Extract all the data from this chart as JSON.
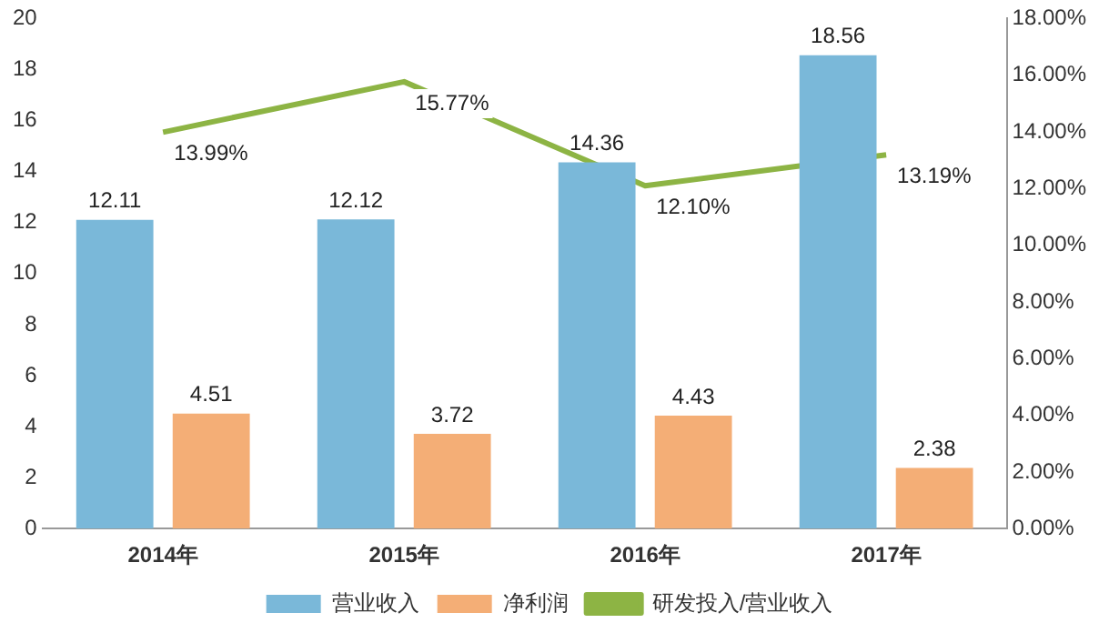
{
  "chart_data": {
    "type": "bar",
    "categories": [
      "2014年",
      "2015年",
      "2016年",
      "2017年"
    ],
    "series": [
      {
        "name": "营业收入",
        "color": "#7ab8d9",
        "values": [
          12.11,
          12.12,
          14.36,
          18.56
        ],
        "value_labels": [
          "12.11",
          "12.12",
          "14.36",
          "18.56"
        ]
      },
      {
        "name": "净利润",
        "color": "#f4ae76",
        "values": [
          4.51,
          3.72,
          4.43,
          2.38
        ],
        "value_labels": [
          "4.51",
          "3.72",
          "4.43",
          "2.38"
        ]
      },
      {
        "name": "研发投入/营业收入",
        "type": "line",
        "axis": "y2",
        "color": "#8db444",
        "values": [
          13.99,
          15.77,
          12.1,
          13.19
        ],
        "value_labels": [
          "13.99%",
          "15.77%",
          "12.10%",
          "13.19%"
        ]
      }
    ],
    "ylim": [
      0,
      20
    ],
    "yticks": [
      0,
      2,
      4,
      6,
      8,
      10,
      12,
      14,
      16,
      18,
      20
    ],
    "y2lim": [
      0,
      18
    ],
    "y2ticks": [
      {
        "value": 0,
        "label": "0.00%"
      },
      {
        "value": 2,
        "label": "2.00%"
      },
      {
        "value": 4,
        "label": "4.00%"
      },
      {
        "value": 6,
        "label": "6.00%"
      },
      {
        "value": 8,
        "label": "8.00%"
      },
      {
        "value": 10,
        "label": "10.00%"
      },
      {
        "value": 12,
        "label": "12.00%"
      },
      {
        "value": 14,
        "label": "14.00%"
      },
      {
        "value": 16,
        "label": "16.00%"
      },
      {
        "value": 18,
        "label": "18.00%"
      }
    ],
    "grid": false,
    "legend": "bottom",
    "marker": "none",
    "line_style": "solid"
  }
}
